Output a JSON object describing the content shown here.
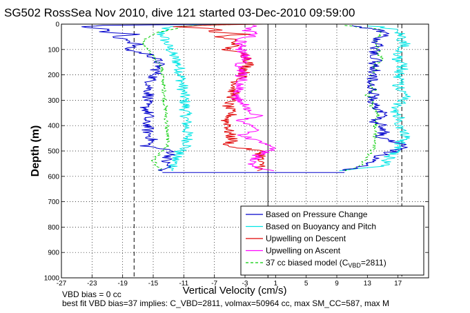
{
  "chart_data": {
    "type": "line",
    "title": "SG502 RossSea Nov 2010, dive 121 started 03-Dec-2010 09:59:00",
    "xlabel": "Vertical Velocity (cm/s)",
    "ylabel": "Depth (m)",
    "xlim": [
      -27,
      21
    ],
    "ylim": [
      1000,
      0
    ],
    "y_reversed": true,
    "grid": true,
    "legend_position": "bottom-right",
    "xticks": [
      "-27",
      "-23",
      "-19",
      "-15",
      "-11",
      "-7",
      "-3",
      "1",
      "5",
      "9",
      "13",
      "17"
    ],
    "yticks": [
      "0",
      "100",
      "200",
      "300",
      "400",
      "500",
      "600",
      "700",
      "800",
      "900",
      "1000"
    ],
    "reference_lines": [
      {
        "x": -17.5,
        "style": "dashed",
        "color": "#000000"
      },
      {
        "x": 17.5,
        "style": "dashed",
        "color": "#000000"
      },
      {
        "x": 0,
        "style": "solid",
        "color": "#000000"
      }
    ],
    "series": [
      {
        "name": "Based on Pressure Change",
        "color": "#0000cc",
        "style": "solid",
        "descent": {
          "depth": [
            0,
            5,
            10,
            20,
            30,
            40,
            50,
            60,
            70,
            80,
            90,
            100,
            120,
            140,
            160,
            180,
            200,
            220,
            240,
            260,
            280,
            300,
            320,
            340,
            360,
            380,
            400,
            420,
            440,
            460,
            480,
            500,
            520,
            540,
            560,
            578
          ],
          "velocity": [
            -5,
            -21,
            -25,
            -20,
            -22,
            -17,
            -21,
            -18,
            -18,
            -17,
            -18,
            -18.5,
            -15.5,
            -14.5,
            -14.2,
            -14.6,
            -14.7,
            -15.3,
            -15.4,
            -15.6,
            -15.5,
            -15.8,
            -16.1,
            -15.8,
            -15.5,
            -16.2,
            -15.6,
            -15.8,
            -15.4,
            -15.1,
            -16.0,
            -12.5,
            -12.8,
            -13.5,
            -13.0,
            -13.8
          ]
        },
        "ascent": {
          "depth": [
            578,
            560,
            540,
            520,
            500,
            480,
            460,
            440,
            420,
            400,
            380,
            360,
            340,
            320,
            300,
            280,
            260,
            240,
            220,
            200,
            180,
            160,
            140,
            120,
            100,
            80,
            60,
            40,
            20,
            5
          ],
          "velocity": [
            9.5,
            12.5,
            13.5,
            14.5,
            16.5,
            18.0,
            16.0,
            14.5,
            15.5,
            15.0,
            13.5,
            16.0,
            14.0,
            14.0,
            13.5,
            14.0,
            13.5,
            13.2,
            13.7,
            13.5,
            14.0,
            13.8,
            14.2,
            14.0,
            14.0,
            14.5,
            14.0,
            16.0,
            14.0,
            11.0
          ]
        }
      },
      {
        "name": "Based on Buoyancy and Pitch",
        "color": "#00e5e5",
        "style": "solid",
        "descent": {
          "depth": [
            0,
            5,
            10,
            20,
            30,
            40,
            50,
            60,
            70,
            80,
            90,
            100,
            120,
            140,
            160,
            180,
            200,
            220,
            240,
            260,
            280,
            300,
            320,
            340,
            360,
            380,
            400,
            420,
            440,
            460,
            480,
            500,
            520,
            540,
            560,
            578
          ],
          "velocity": [
            -4,
            -10,
            -13,
            -13.5,
            -14,
            -14,
            -13.5,
            -13.5,
            -13.3,
            -13.2,
            -13.0,
            -12.8,
            -12.5,
            -12.0,
            -11.7,
            -11.5,
            -11.4,
            -11.3,
            -11.2,
            -11.1,
            -11.0,
            -10.9,
            -10.8,
            -10.8,
            -10.7,
            -10.7,
            -10.6,
            -10.6,
            -10.5,
            -10.5,
            -10.5,
            -11.5,
            -12.0,
            -12.2,
            -12.3,
            -12.4
          ]
        },
        "ascent": {
          "depth": [
            578,
            560,
            540,
            520,
            500,
            480,
            460,
            440,
            420,
            400,
            380,
            360,
            340,
            320,
            300,
            280,
            260,
            240,
            220,
            200,
            180,
            160,
            140,
            120,
            100,
            80,
            60,
            40,
            20,
            5
          ],
          "velocity": [
            9.0,
            15.0,
            15.5,
            16.0,
            16.5,
            17.0,
            17.5,
            18.0,
            17.5,
            17.0,
            17.5,
            17.0,
            16.5,
            17.0,
            17.5,
            18.0,
            17.5,
            17.0,
            17.0,
            17.0,
            17.5,
            17.5,
            17.0,
            17.0,
            17.5,
            18.0,
            17.5,
            17.5,
            17.0,
            13.0
          ]
        }
      },
      {
        "name": "Upwelling on Descent",
        "color": "#e00000",
        "style": "solid",
        "depth": [
          0,
          5,
          10,
          20,
          30,
          40,
          50,
          60,
          70,
          80,
          90,
          100,
          120,
          140,
          160,
          180,
          200,
          220,
          240,
          260,
          280,
          300,
          320,
          340,
          360,
          380,
          400,
          420,
          440,
          460,
          480,
          500,
          520,
          540,
          560,
          578
        ],
        "velocity": [
          -1,
          -9,
          -12,
          -6,
          -8,
          -3,
          -7,
          -4.5,
          -4.5,
          -4,
          -5,
          -5.5,
          -3,
          -2.5,
          -2.5,
          -3,
          -3.2,
          -4,
          -4.2,
          -4.5,
          -4.5,
          -4.8,
          -5.3,
          -5,
          -4.8,
          -5.5,
          -5,
          -5.2,
          -4.9,
          -4.6,
          -5.5,
          -1,
          -0.8,
          -1.3,
          -0.7,
          -1.4
        ]
      },
      {
        "name": "Upwelling on Ascent",
        "color": "#ff00ff",
        "style": "solid",
        "depth": [
          578,
          560,
          540,
          520,
          500,
          480,
          460,
          440,
          420,
          400,
          380,
          360,
          340,
          320,
          300,
          280,
          260,
          240,
          220,
          200,
          180,
          160,
          140,
          120,
          100,
          80,
          60,
          40,
          20,
          5
        ],
        "velocity": [
          0.5,
          -2.5,
          -2.0,
          -1.5,
          0,
          1,
          -1.5,
          -3.5,
          -2.0,
          -2.0,
          -4.0,
          -1.0,
          -2.5,
          -3.0,
          -4.0,
          -4.0,
          -4.0,
          -3.8,
          -3.3,
          -3.5,
          -3.5,
          -3.7,
          -2.8,
          -3.0,
          -3.5,
          -3.5,
          -3.5,
          -1.5,
          -3.0,
          -2.0
        ]
      },
      {
        "name": "37 cc biased model (C",
        "subscript": "VBD",
        "name_suffix": "=2811)",
        "color": "#00cc00",
        "style": "dashed",
        "descent": {
          "depth": [
            0,
            5,
            10,
            20,
            30,
            40,
            50,
            60,
            70,
            80,
            90,
            100,
            120,
            140,
            160,
            180,
            200,
            220,
            240,
            260,
            280,
            300,
            320,
            340,
            360,
            380,
            400,
            420,
            440,
            460,
            480,
            500,
            520,
            540,
            560,
            578
          ],
          "velocity": [
            -3,
            -9,
            -11,
            -12.5,
            -14,
            -15,
            -15.5,
            -16,
            -16.5,
            -16.2,
            -16.0,
            -15.8,
            -15.2,
            -14.8,
            -14.0,
            -13.9,
            -13.8,
            -13.7,
            -13.6,
            -13.6,
            -13.5,
            -13.5,
            -13.4,
            -13.4,
            -13.3,
            -13.3,
            -13.2,
            -13.2,
            -13.2,
            -13.1,
            -13.1,
            -13.8,
            -14.5,
            -15.0,
            -14.5,
            -14.0
          ]
        },
        "ascent": {
          "depth": [
            578,
            560,
            540,
            520,
            500,
            480,
            460,
            440,
            420,
            400,
            380,
            360,
            340,
            320,
            300,
            280,
            260,
            240,
            220,
            200,
            180,
            160,
            140,
            120,
            100,
            80,
            60,
            40,
            20,
            5
          ],
          "velocity": [
            10.0,
            12.0,
            12.5,
            13.0,
            13.5,
            14.0,
            14.0,
            14.0,
            14.0,
            14.0,
            14.0,
            14.5,
            14.0,
            13.5,
            13.5,
            13.0,
            14.0,
            13.5,
            13.5,
            13.5,
            14.0,
            14.0,
            15.0,
            14.5,
            14.5,
            14.0,
            14.0,
            15.0,
            14.5,
            10.0
          ]
        }
      }
    ],
    "bottom_connector": {
      "depth": 585,
      "color": "#0000cc"
    }
  },
  "footer": {
    "line1": "VBD bias = 0 cc",
    "line2": "best fit VBD bias=37 implies: C_VBD=2811, volmax=50964 cc, max SM_CC=587, max M"
  }
}
